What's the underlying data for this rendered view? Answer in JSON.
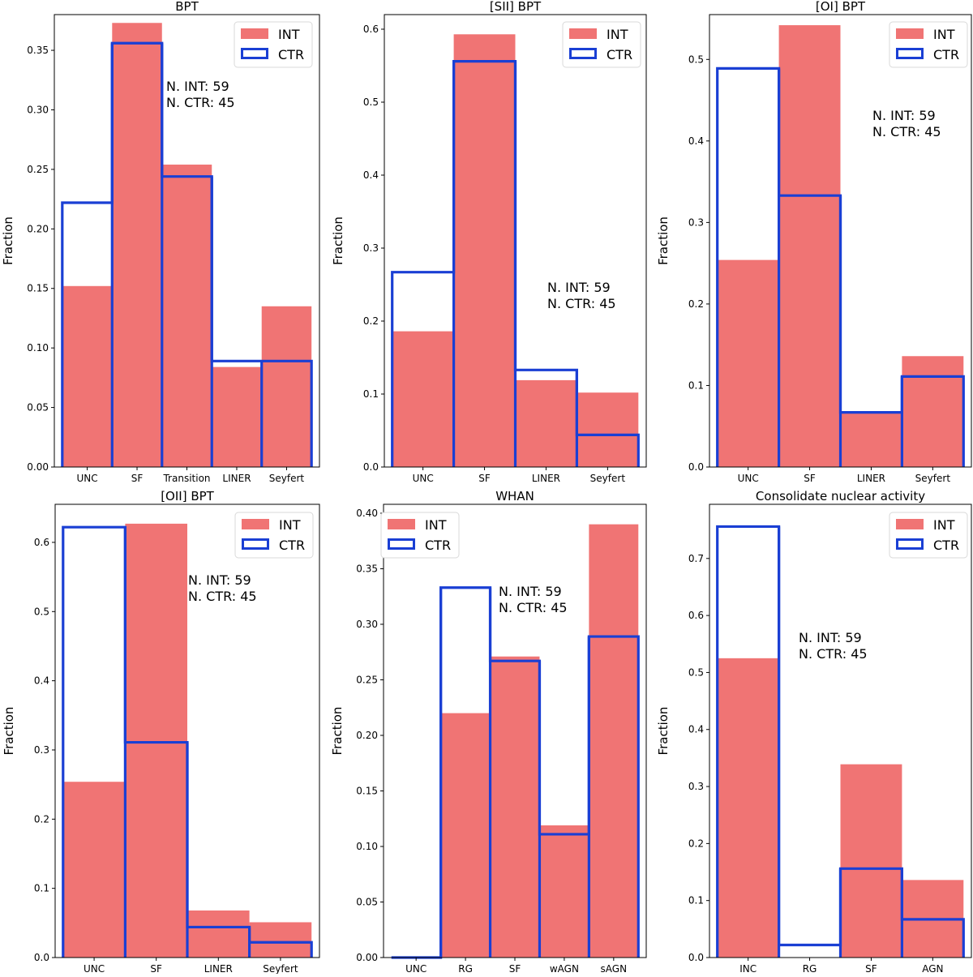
{
  "colors": {
    "int_fill": "#f07474",
    "ctr_edge": "#1a3fd4",
    "axis": "#000000"
  },
  "legend": {
    "int_label": "INT",
    "ctr_label": "CTR"
  },
  "chart_data": [
    {
      "type": "bar",
      "title": "BPT",
      "ylabel": "Fraction",
      "xlabel": "",
      "ylim": [
        0,
        0.38
      ],
      "yticks": [
        0.0,
        0.05,
        0.1,
        0.15,
        0.2,
        0.25,
        0.3,
        0.35
      ],
      "ytick_labels": [
        "0.00",
        "0.05",
        "0.10",
        "0.15",
        "0.20",
        "0.25",
        "0.30",
        "0.35"
      ],
      "categories": [
        "UNC",
        "SF",
        "Transition",
        "LINER",
        "Seyfert"
      ],
      "series": [
        {
          "name": "INT",
          "style": "filled",
          "values": [
            0.152,
            0.373,
            0.254,
            0.084,
            0.135
          ]
        },
        {
          "name": "CTR",
          "style": "outline",
          "values": [
            0.222,
            0.356,
            0.244,
            0.089,
            0.089
          ]
        }
      ],
      "legend_position": "top-right",
      "annotation": [
        "N. INT: 59",
        "N. CTR: 45"
      ]
    },
    {
      "type": "bar",
      "title": "[SII] BPT",
      "ylabel": "Fraction",
      "xlabel": "",
      "ylim": [
        0,
        0.62
      ],
      "yticks": [
        0.0,
        0.1,
        0.2,
        0.3,
        0.4,
        0.5,
        0.6
      ],
      "ytick_labels": [
        "0.0",
        "0.1",
        "0.2",
        "0.3",
        "0.4",
        "0.5",
        "0.6"
      ],
      "categories": [
        "UNC",
        "SF",
        "LINER",
        "Seyfert"
      ],
      "series": [
        {
          "name": "INT",
          "style": "filled",
          "values": [
            0.186,
            0.593,
            0.119,
            0.102
          ]
        },
        {
          "name": "CTR",
          "style": "outline",
          "values": [
            0.267,
            0.556,
            0.133,
            0.044
          ]
        }
      ],
      "legend_position": "top-right",
      "annotation": [
        "N. INT: 59",
        "N. CTR: 45"
      ]
    },
    {
      "type": "bar",
      "title": "[OI] BPT",
      "ylabel": "Fraction",
      "xlabel": "",
      "ylim": [
        0,
        0.555
      ],
      "yticks": [
        0.0,
        0.1,
        0.2,
        0.3,
        0.4,
        0.5
      ],
      "ytick_labels": [
        "0.0",
        "0.1",
        "0.2",
        "0.3",
        "0.4",
        "0.5"
      ],
      "categories": [
        "UNC",
        "SF",
        "LINER",
        "Seyfert"
      ],
      "series": [
        {
          "name": "INT",
          "style": "filled",
          "values": [
            0.254,
            0.542,
            0.068,
            0.136
          ]
        },
        {
          "name": "CTR",
          "style": "outline",
          "values": [
            0.489,
            0.333,
            0.067,
            0.111
          ]
        }
      ],
      "legend_position": "top-right",
      "annotation": [
        "N. INT: 59",
        "N. CTR: 45"
      ]
    },
    {
      "type": "bar",
      "title": "[OII] BPT",
      "ylabel": "Fraction",
      "xlabel": "",
      "ylim": [
        0,
        0.655
      ],
      "yticks": [
        0.0,
        0.1,
        0.2,
        0.3,
        0.4,
        0.5,
        0.6
      ],
      "ytick_labels": [
        "0.0",
        "0.1",
        "0.2",
        "0.3",
        "0.4",
        "0.5",
        "0.6"
      ],
      "categories": [
        "UNC",
        "SF",
        "LINER",
        "Seyfert"
      ],
      "series": [
        {
          "name": "INT",
          "style": "filled",
          "values": [
            0.254,
            0.627,
            0.068,
            0.051
          ]
        },
        {
          "name": "CTR",
          "style": "outline",
          "values": [
            0.622,
            0.311,
            0.044,
            0.022
          ]
        }
      ],
      "legend_position": "top-right",
      "annotation": [
        "N. INT: 59",
        "N. CTR: 45"
      ]
    },
    {
      "type": "bar",
      "title": "WHAN",
      "ylabel": "Fraction",
      "xlabel": "",
      "ylim": [
        0,
        0.408
      ],
      "yticks": [
        0.0,
        0.05,
        0.1,
        0.15,
        0.2,
        0.25,
        0.3,
        0.35,
        0.4
      ],
      "ytick_labels": [
        "0.00",
        "0.05",
        "0.10",
        "0.15",
        "0.20",
        "0.25",
        "0.30",
        "0.35",
        "0.40"
      ],
      "categories": [
        "UNC",
        "RG",
        "SF",
        "wAGN",
        "sAGN"
      ],
      "series": [
        {
          "name": "INT",
          "style": "filled",
          "values": [
            0.0,
            0.22,
            0.271,
            0.119,
            0.39
          ]
        },
        {
          "name": "CTR",
          "style": "outline",
          "values": [
            0.0,
            0.333,
            0.267,
            0.111,
            0.289
          ]
        }
      ],
      "legend_position": "top-left",
      "annotation": [
        "N. INT: 59",
        "N. CTR: 45"
      ]
    },
    {
      "type": "bar",
      "title": "Consolidate nuclear activity",
      "ylabel": "Fraction",
      "xlabel": "",
      "ylim": [
        0,
        0.795
      ],
      "yticks": [
        0.0,
        0.1,
        0.2,
        0.3,
        0.4,
        0.5,
        0.6,
        0.7
      ],
      "ytick_labels": [
        "0.0",
        "0.1",
        "0.2",
        "0.3",
        "0.4",
        "0.5",
        "0.6",
        "0.7"
      ],
      "categories": [
        "INC",
        "RG",
        "SF",
        "AGN"
      ],
      "series": [
        {
          "name": "INT",
          "style": "filled",
          "values": [
            0.525,
            0.0,
            0.339,
            0.136
          ]
        },
        {
          "name": "CTR",
          "style": "outline",
          "values": [
            0.756,
            0.022,
            0.156,
            0.067
          ]
        }
      ],
      "legend_position": "top-right",
      "annotation": [
        "N. INT: 59",
        "N. CTR: 45"
      ]
    }
  ]
}
